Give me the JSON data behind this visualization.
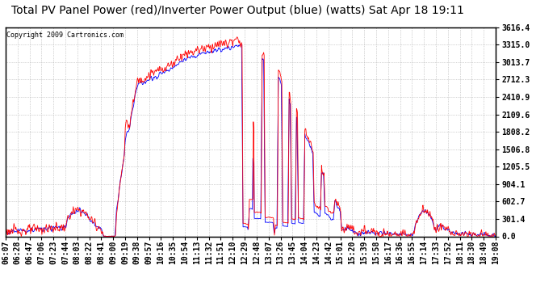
{
  "title": "Total PV Panel Power (red)/Inverter Power Output (blue) (watts) Sat Apr 18 19:11",
  "copyright": "Copyright 2009 Cartronics.com",
  "ylabel_ticks": [
    0.0,
    301.4,
    602.7,
    904.1,
    1205.5,
    1506.8,
    1808.2,
    2109.6,
    2410.9,
    2712.3,
    3013.7,
    3315.0,
    3616.4
  ],
  "x_labels": [
    "06:07",
    "06:28",
    "06:47",
    "07:06",
    "07:23",
    "07:44",
    "08:03",
    "08:22",
    "08:41",
    "09:00",
    "09:19",
    "09:38",
    "09:57",
    "10:16",
    "10:35",
    "10:54",
    "11:13",
    "11:32",
    "11:51",
    "12:10",
    "12:29",
    "12:48",
    "13:07",
    "13:26",
    "13:45",
    "14:04",
    "14:23",
    "14:42",
    "15:01",
    "15:20",
    "15:39",
    "15:58",
    "16:17",
    "16:36",
    "16:55",
    "17:14",
    "17:33",
    "17:52",
    "18:11",
    "18:30",
    "18:49",
    "19:08"
  ],
  "red_color": "#ff0000",
  "blue_color": "#0000ff",
  "grid_color": "#aaaaaa",
  "title_fontsize": 10,
  "tick_fontsize": 7,
  "figsize": [
    6.9,
    3.75
  ],
  "dpi": 100,
  "ymax": 3616.4
}
